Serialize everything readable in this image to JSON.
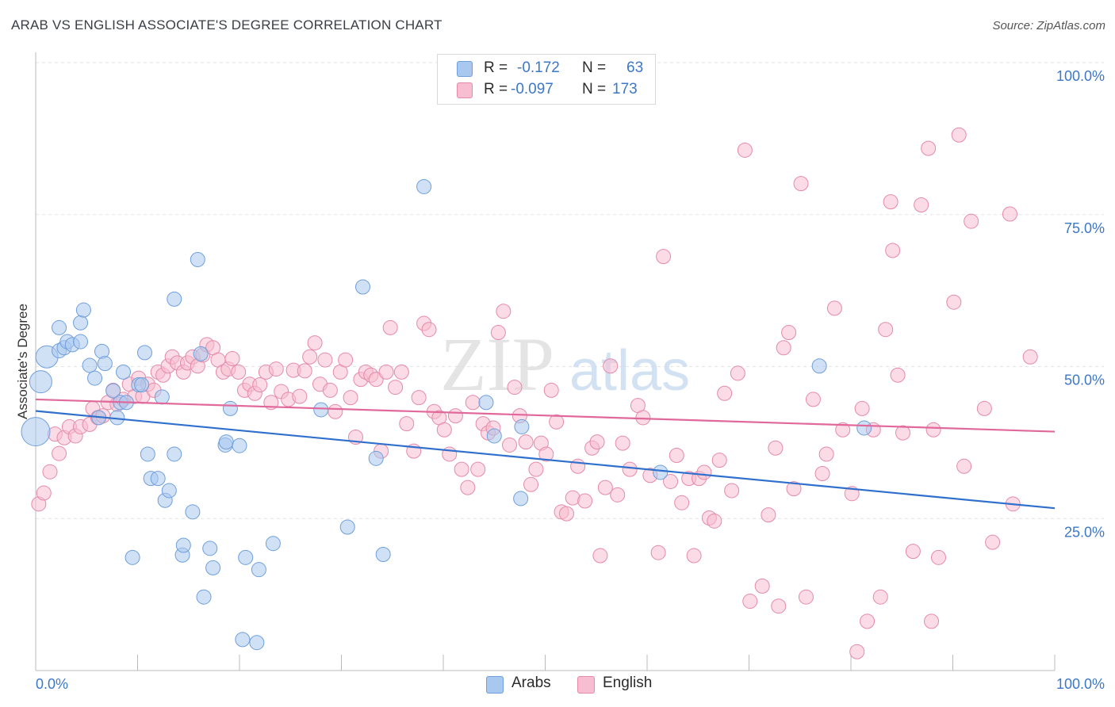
{
  "title": "ARAB VS ENGLISH ASSOCIATE'S DEGREE CORRELATION CHART",
  "source": "Source: ZipAtlas.com",
  "watermark": {
    "zip": "ZIP",
    "atlas": "atlas"
  },
  "legend": {
    "rows": [
      {
        "r_label": "R =",
        "r_value": "-0.172",
        "n_label": "N =",
        "n_value": "63",
        "color": "#a9c8ef"
      },
      {
        "r_label": "R =",
        "r_value": "-0.097",
        "n_label": "N =",
        "n_value": "173",
        "color": "#f7bdd0"
      }
    ],
    "bottom": [
      {
        "label": "Arabs",
        "color": "#a9c8ef"
      },
      {
        "label": "English",
        "color": "#f7bdd0"
      }
    ]
  },
  "colors": {
    "arab_fill": "#a9c8ef",
    "arab_stroke": "#6f9fdc",
    "arab_line": "#2f6fcd",
    "english_fill": "#f7bdd0",
    "english_stroke": "#e58aa9",
    "english_line": "#e0689a",
    "axis_label": "#3c78c8",
    "grid": "#e3e3e3"
  },
  "chart_data": {
    "type": "scatter",
    "title": "ARAB VS ENGLISH ASSOCIATE'S DEGREE CORRELATION CHART",
    "xlabel": "",
    "ylabel": "Associate's Degree",
    "xlim": [
      0,
      100
    ],
    "ylim": [
      0,
      100
    ],
    "x_tick_labels": [
      "0.0%",
      "100.0%"
    ],
    "y_tick_labels": [
      "25.0%",
      "50.0%",
      "75.0%",
      "100.0%"
    ],
    "y_ticks": [
      25,
      50,
      75,
      100
    ],
    "grid": true,
    "legend_position": "top-center",
    "series": [
      {
        "name": "Arabs",
        "r": -0.172,
        "n": 63,
        "trend": {
          "x": [
            0,
            100
          ],
          "y": [
            42.7,
            26.7
          ]
        },
        "points": [
          [
            0,
            39.3,
            3
          ],
          [
            0.5,
            47.5,
            2
          ],
          [
            1.1,
            51.6,
            2
          ],
          [
            2.3,
            52.6,
            1
          ],
          [
            2.3,
            56.4,
            1
          ],
          [
            2.8,
            53.1,
            1
          ],
          [
            3.1,
            54.1,
            1
          ],
          [
            3.6,
            53.6,
            1
          ],
          [
            4.4,
            54.1,
            1
          ],
          [
            4.4,
            57.2,
            1
          ],
          [
            4.7,
            59.3,
            1
          ],
          [
            5.3,
            50.2,
            1
          ],
          [
            5.8,
            48.1,
            1
          ],
          [
            6.2,
            41.6,
            1
          ],
          [
            6.5,
            52.5,
            1
          ],
          [
            6.8,
            50.5,
            1
          ],
          [
            7.6,
            46.0,
            1
          ],
          [
            8.0,
            41.6,
            1
          ],
          [
            8.3,
            44.1,
            1
          ],
          [
            8.6,
            49.1,
            1
          ],
          [
            8.9,
            44.1,
            1
          ],
          [
            9.5,
            18.6,
            1
          ],
          [
            10.1,
            47.0,
            1
          ],
          [
            10.4,
            47.0,
            1
          ],
          [
            10.7,
            52.3,
            1
          ],
          [
            11.0,
            35.6,
            1
          ],
          [
            11.3,
            31.6,
            1
          ],
          [
            12.0,
            31.6,
            1
          ],
          [
            12.4,
            45.0,
            1
          ],
          [
            12.7,
            28.0,
            1
          ],
          [
            13.1,
            29.6,
            1
          ],
          [
            13.6,
            35.6,
            1
          ],
          [
            13.6,
            61.1,
            1
          ],
          [
            14.4,
            19.0,
            1
          ],
          [
            14.5,
            20.6,
            1
          ],
          [
            15.4,
            26.1,
            1
          ],
          [
            15.9,
            67.6,
            1
          ],
          [
            16.2,
            52.1,
            1
          ],
          [
            16.5,
            12.1,
            1
          ],
          [
            17.1,
            20.1,
            1
          ],
          [
            17.4,
            16.9,
            1
          ],
          [
            18.6,
            37.1,
            1
          ],
          [
            18.7,
            37.6,
            1
          ],
          [
            19.1,
            43.1,
            1
          ],
          [
            20.3,
            5.1,
            1
          ],
          [
            20.6,
            18.6,
            1
          ],
          [
            21.7,
            4.6,
            1
          ],
          [
            21.9,
            16.6,
            1
          ],
          [
            23.3,
            20.9,
            1
          ],
          [
            28.0,
            42.9,
            1
          ],
          [
            30.6,
            23.6,
            1
          ],
          [
            32.1,
            63.1,
            1
          ],
          [
            33.4,
            34.9,
            1
          ],
          [
            34.1,
            19.1,
            1
          ],
          [
            38.1,
            79.6,
            1
          ],
          [
            44.2,
            44.1,
            1
          ],
          [
            45.0,
            38.6,
            1
          ],
          [
            47.6,
            28.3,
            1
          ],
          [
            47.7,
            40.1,
            1
          ],
          [
            61.3,
            32.6,
            1
          ],
          [
            76.9,
            50.1,
            1
          ],
          [
            81.3,
            39.9,
            1
          ],
          [
            20.0,
            37.0,
            1
          ]
        ]
      },
      {
        "name": "English",
        "r": -0.097,
        "n": 173,
        "trend": {
          "x": [
            0,
            100
          ],
          "y": [
            44.6,
            39.3
          ]
        },
        "points": [
          [
            0.3,
            27.4
          ],
          [
            0.8,
            29.2
          ],
          [
            1.4,
            32.7
          ],
          [
            1.9,
            38.9
          ],
          [
            2.3,
            35.7
          ],
          [
            2.8,
            38.3
          ],
          [
            3.3,
            40.1
          ],
          [
            3.9,
            38.6
          ],
          [
            4.4,
            40.1
          ],
          [
            5.3,
            40.5
          ],
          [
            5.6,
            43.1
          ],
          [
            6.1,
            41.6
          ],
          [
            6.6,
            41.9
          ],
          [
            7.1,
            44.1
          ],
          [
            7.6,
            46.1
          ],
          [
            8.0,
            43.8
          ],
          [
            8.6,
            44.6
          ],
          [
            9.2,
            47.1
          ],
          [
            9.7,
            45.1
          ],
          [
            10.1,
            48.1
          ],
          [
            10.5,
            45.1
          ],
          [
            11.0,
            47.1
          ],
          [
            11.6,
            46.1
          ],
          [
            12.0,
            49.1
          ],
          [
            12.5,
            48.6
          ],
          [
            13.0,
            50.1
          ],
          [
            13.4,
            51.6
          ],
          [
            13.9,
            50.6
          ],
          [
            14.5,
            49.1
          ],
          [
            14.9,
            50.6
          ],
          [
            15.4,
            51.6
          ],
          [
            15.9,
            50.1
          ],
          [
            16.4,
            51.9
          ],
          [
            16.8,
            53.6
          ],
          [
            17.4,
            53.1
          ],
          [
            17.9,
            51.1
          ],
          [
            18.4,
            49.1
          ],
          [
            18.9,
            49.6
          ],
          [
            19.3,
            51.3
          ],
          [
            19.9,
            49.1
          ],
          [
            20.5,
            46.1
          ],
          [
            21.0,
            47.1
          ],
          [
            21.5,
            45.6
          ],
          [
            22.0,
            47.0
          ],
          [
            22.6,
            49.1
          ],
          [
            23.1,
            44.1
          ],
          [
            23.6,
            49.6
          ],
          [
            24.1,
            45.9
          ],
          [
            24.8,
            44.6
          ],
          [
            25.3,
            49.4
          ],
          [
            25.9,
            45.1
          ],
          [
            26.4,
            49.3
          ],
          [
            26.9,
            51.6
          ],
          [
            27.4,
            53.9
          ],
          [
            27.9,
            47.1
          ],
          [
            28.4,
            51.1
          ],
          [
            28.9,
            46.1
          ],
          [
            29.4,
            42.6
          ],
          [
            29.9,
            49.1
          ],
          [
            30.4,
            51.1
          ],
          [
            30.9,
            44.9
          ],
          [
            31.4,
            38.4
          ],
          [
            31.9,
            47.9
          ],
          [
            32.4,
            49.1
          ],
          [
            32.9,
            48.6
          ],
          [
            33.4,
            47.9
          ],
          [
            33.9,
            36.1
          ],
          [
            34.4,
            49.1
          ],
          [
            34.8,
            56.4
          ],
          [
            35.3,
            46.6
          ],
          [
            35.9,
            49.1
          ],
          [
            36.4,
            40.6
          ],
          [
            37.1,
            36.1
          ],
          [
            37.6,
            44.9
          ],
          [
            38.1,
            57.1
          ],
          [
            38.6,
            56.1
          ],
          [
            39.1,
            42.6
          ],
          [
            39.6,
            41.6
          ],
          [
            40.1,
            39.6
          ],
          [
            40.6,
            35.6
          ],
          [
            41.2,
            41.9
          ],
          [
            41.8,
            33.1
          ],
          [
            42.4,
            30.1
          ],
          [
            42.9,
            44.1
          ],
          [
            43.4,
            33.1
          ],
          [
            43.9,
            40.6
          ],
          [
            44.4,
            39.1
          ],
          [
            44.9,
            39.9
          ],
          [
            45.4,
            55.6
          ],
          [
            45.9,
            59.1
          ],
          [
            46.5,
            37.1
          ],
          [
            47.0,
            46.6
          ],
          [
            47.5,
            41.9
          ],
          [
            48.1,
            37.6
          ],
          [
            48.6,
            30.6
          ],
          [
            49.1,
            33.1
          ],
          [
            49.6,
            37.4
          ],
          [
            50.1,
            35.6
          ],
          [
            50.6,
            46.1
          ],
          [
            51.1,
            40.9
          ],
          [
            51.6,
            26.1
          ],
          [
            52.1,
            25.8
          ],
          [
            52.7,
            28.4
          ],
          [
            53.2,
            33.6
          ],
          [
            53.9,
            27.9
          ],
          [
            54.6,
            36.6
          ],
          [
            55.1,
            37.6
          ],
          [
            55.4,
            18.9
          ],
          [
            55.9,
            30.1
          ],
          [
            56.4,
            50.1
          ],
          [
            57.1,
            28.9
          ],
          [
            57.6,
            37.4
          ],
          [
            58.3,
            33.1
          ],
          [
            59.1,
            43.6
          ],
          [
            59.6,
            41.6
          ],
          [
            60.3,
            32.1
          ],
          [
            61.1,
            19.4
          ],
          [
            61.6,
            68.1
          ],
          [
            62.3,
            31.1
          ],
          [
            62.9,
            35.4
          ],
          [
            63.4,
            27.6
          ],
          [
            64.1,
            31.6
          ],
          [
            64.6,
            18.9
          ],
          [
            65.1,
            31.6
          ],
          [
            65.6,
            32.6
          ],
          [
            66.1,
            25.1
          ],
          [
            66.6,
            24.6
          ],
          [
            67.1,
            34.6
          ],
          [
            67.6,
            45.6
          ],
          [
            68.3,
            29.6
          ],
          [
            68.9,
            48.9
          ],
          [
            69.6,
            85.6
          ],
          [
            70.1,
            11.4
          ],
          [
            71.3,
            13.9
          ],
          [
            71.9,
            25.6
          ],
          [
            72.6,
            36.6
          ],
          [
            72.9,
            10.6
          ],
          [
            73.4,
            53.1
          ],
          [
            73.9,
            55.6
          ],
          [
            74.4,
            29.9
          ],
          [
            75.1,
            80.1
          ],
          [
            75.6,
            12.1
          ],
          [
            76.3,
            44.6
          ],
          [
            77.2,
            32.4
          ],
          [
            77.6,
            35.6
          ],
          [
            78.4,
            59.6
          ],
          [
            79.2,
            39.6
          ],
          [
            80.1,
            29.1
          ],
          [
            80.6,
            3.1
          ],
          [
            81.1,
            43.1
          ],
          [
            81.6,
            8.1
          ],
          [
            82.2,
            39.6
          ],
          [
            82.9,
            12.1
          ],
          [
            83.4,
            56.1
          ],
          [
            83.9,
            77.1
          ],
          [
            84.1,
            69.1
          ],
          [
            84.6,
            48.6
          ],
          [
            85.1,
            39.1
          ],
          [
            86.1,
            19.6
          ],
          [
            86.9,
            76.6
          ],
          [
            87.6,
            85.9
          ],
          [
            87.9,
            8.1
          ],
          [
            88.1,
            39.6
          ],
          [
            88.6,
            18.6
          ],
          [
            90.1,
            60.6
          ],
          [
            90.6,
            88.1
          ],
          [
            91.1,
            33.6
          ],
          [
            91.8,
            73.9
          ],
          [
            93.1,
            43.1
          ],
          [
            93.9,
            21.1
          ],
          [
            95.6,
            75.1
          ],
          [
            95.9,
            27.4
          ],
          [
            97.6,
            51.6
          ]
        ]
      }
    ]
  }
}
